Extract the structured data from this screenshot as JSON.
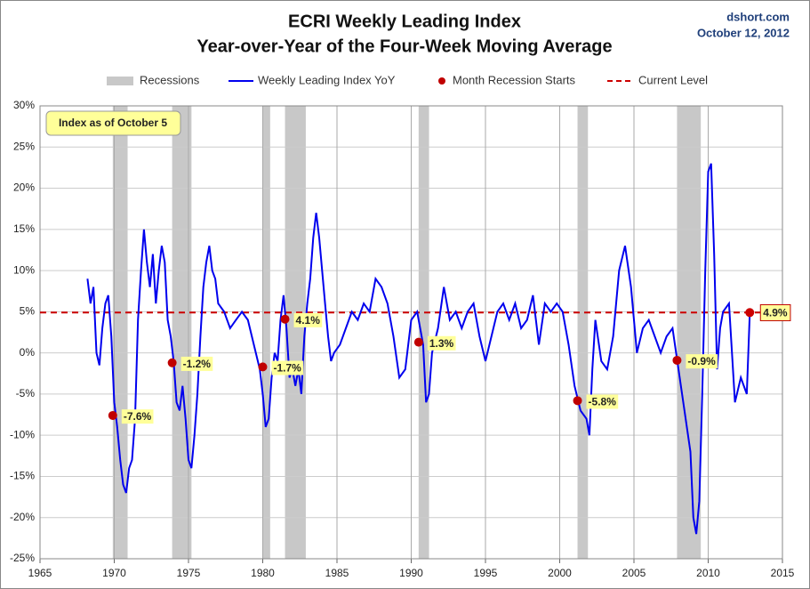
{
  "chart_data": {
    "type": "line",
    "title": "ECRI Weekly Leading Index",
    "subtitle": "Year-over-Year of the Four-Week Moving Average",
    "source": "dshort.com",
    "date": "October 12, 2012",
    "annotation": "Index as of October 5",
    "xlim": [
      1965,
      2015
    ],
    "xticks": [
      1965,
      1970,
      1975,
      1980,
      1985,
      1990,
      1995,
      2000,
      2005,
      2010,
      2015
    ],
    "ylim": [
      -25,
      30
    ],
    "yticks": [
      {
        "value": -25,
        "label": "-25%"
      },
      {
        "value": -20,
        "label": "-20%"
      },
      {
        "value": -15,
        "label": "-15%"
      },
      {
        "value": -10,
        "label": "-10%"
      },
      {
        "value": -5,
        "label": "-5%"
      },
      {
        "value": 0,
        "label": "0%"
      },
      {
        "value": 5,
        "label": "5%"
      },
      {
        "value": 10,
        "label": "10%"
      },
      {
        "value": 15,
        "label": "15%"
      },
      {
        "value": 20,
        "label": "20%"
      },
      {
        "value": 25,
        "label": "25%"
      },
      {
        "value": 30,
        "label": "30%"
      }
    ],
    "grid": true,
    "recessions": {
      "name": "Recessions",
      "color": "#c8c8c8",
      "spans": [
        [
          1969.9,
          1970.9
        ],
        [
          1973.9,
          1975.2
        ],
        [
          1980.0,
          1980.5
        ],
        [
          1981.5,
          1982.9
        ],
        [
          1990.5,
          1991.2
        ],
        [
          2001.2,
          2001.9
        ],
        [
          2007.9,
          2009.5
        ]
      ]
    },
    "series": [
      {
        "name": "Weekly Leading Index YoY",
        "color": "#0000ee",
        "x": [
          1968.2,
          1968.4,
          1968.6,
          1968.8,
          1969.0,
          1969.2,
          1969.4,
          1969.6,
          1969.8,
          1970.0,
          1970.2,
          1970.4,
          1970.6,
          1970.8,
          1971.0,
          1971.2,
          1971.4,
          1971.6,
          1971.8,
          1972.0,
          1972.2,
          1972.4,
          1972.6,
          1972.8,
          1973.0,
          1973.2,
          1973.4,
          1973.6,
          1973.8,
          1974.0,
          1974.2,
          1974.4,
          1974.6,
          1974.8,
          1975.0,
          1975.2,
          1975.4,
          1975.6,
          1975.8,
          1976.0,
          1976.2,
          1976.4,
          1976.6,
          1976.8,
          1977.0,
          1977.4,
          1977.8,
          1978.2,
          1978.6,
          1979.0,
          1979.4,
          1979.8,
          1980.0,
          1980.2,
          1980.4,
          1980.6,
          1980.8,
          1981.0,
          1981.2,
          1981.4,
          1981.6,
          1981.8,
          1982.0,
          1982.2,
          1982.4,
          1982.6,
          1982.8,
          1983.0,
          1983.2,
          1983.4,
          1983.6,
          1983.8,
          1984.0,
          1984.2,
          1984.4,
          1984.6,
          1984.8,
          1985.2,
          1985.6,
          1986.0,
          1986.4,
          1986.8,
          1987.2,
          1987.6,
          1988.0,
          1988.4,
          1988.8,
          1989.2,
          1989.6,
          1990.0,
          1990.4,
          1990.8,
          1991.0,
          1991.2,
          1991.4,
          1991.8,
          1992.2,
          1992.6,
          1993.0,
          1993.4,
          1993.8,
          1994.2,
          1994.6,
          1995.0,
          1995.4,
          1995.8,
          1996.2,
          1996.6,
          1997.0,
          1997.4,
          1997.8,
          1998.2,
          1998.6,
          1999.0,
          1999.4,
          1999.8,
          2000.2,
          2000.6,
          2001.0,
          2001.4,
          2001.8,
          2002.0,
          2002.2,
          2002.4,
          2002.8,
          2003.2,
          2003.6,
          2004.0,
          2004.4,
          2004.8,
          2005.2,
          2005.6,
          2006.0,
          2006.4,
          2006.8,
          2007.2,
          2007.6,
          2008.0,
          2008.4,
          2008.8,
          2009.0,
          2009.2,
          2009.4,
          2009.6,
          2009.8,
          2010.0,
          2010.2,
          2010.4,
          2010.6,
          2010.8,
          2011.0,
          2011.4,
          2011.8,
          2012.2,
          2012.6,
          2012.8
        ],
        "values": [
          9,
          6,
          8,
          0,
          -1.5,
          3,
          6,
          7,
          2,
          -6,
          -9,
          -13,
          -16,
          -17,
          -14,
          -13,
          -8,
          4,
          10,
          15,
          11,
          8,
          12,
          6,
          10,
          13,
          11,
          4,
          2,
          -1,
          -6,
          -7,
          -4,
          -8,
          -13,
          -14,
          -10,
          -5,
          2,
          8,
          11,
          13,
          10,
          9,
          6,
          5,
          3,
          4,
          5,
          4,
          1,
          -2,
          -5,
          -9,
          -8,
          -3,
          0,
          -1,
          4,
          7,
          3,
          -3,
          -2,
          -4,
          -2,
          -5,
          2,
          6,
          9,
          14,
          17,
          14,
          10,
          6,
          2,
          -1,
          0,
          1,
          3,
          5,
          4,
          6,
          5,
          9,
          8,
          6,
          2,
          -3,
          -2,
          4,
          5,
          1,
          -6,
          -5,
          0,
          3,
          8,
          4,
          5,
          3,
          5,
          6,
          2,
          -1,
          2,
          5,
          6,
          4,
          6,
          3,
          4,
          7,
          1,
          6,
          5,
          6,
          5,
          1,
          -4,
          -7,
          -8,
          -10,
          -2,
          4,
          -1,
          -2,
          2,
          10,
          13,
          8,
          0,
          3,
          4,
          2,
          0,
          2,
          3,
          -2,
          -7,
          -12,
          -20,
          -22,
          -18,
          -5,
          10,
          22,
          23,
          12,
          -2,
          3,
          5,
          6,
          -6,
          -3,
          -5,
          4.9
        ]
      },
      {
        "name": "Month Recession Starts",
        "color": "#c00000",
        "x": [
          1969.9,
          1973.9,
          1980.0,
          1981.5,
          1990.5,
          2001.2,
          2007.9
        ],
        "values": [
          -7.6,
          -1.2,
          -1.7,
          4.1,
          1.3,
          -5.8,
          -0.9
        ],
        "value_labels": [
          "-7.6%",
          "-1.2%",
          "-1.7%",
          "4.1%",
          "1.3%",
          "-5.8%",
          "-0.9%"
        ]
      }
    ],
    "current_level": {
      "name": "Current Level",
      "color": "#cc0000",
      "x": 2012.8,
      "value": 4.9,
      "value_label": "4.9%"
    }
  }
}
